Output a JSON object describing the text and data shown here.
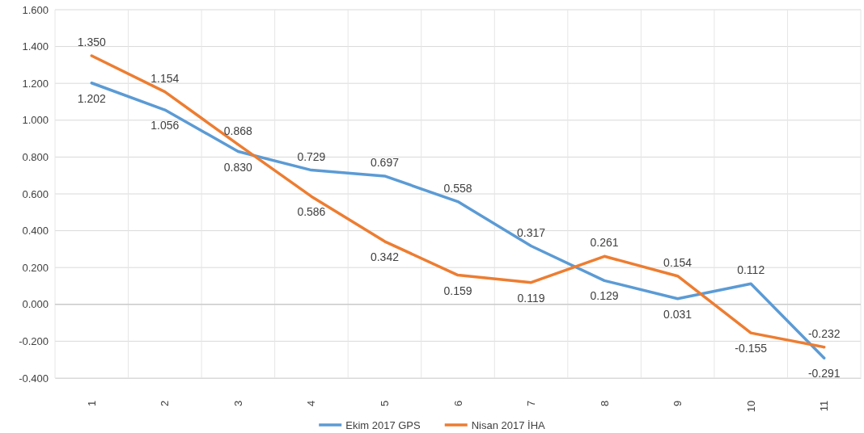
{
  "chart_data": {
    "type": "line",
    "categories": [
      "1",
      "2",
      "3",
      "4",
      "5",
      "6",
      "7",
      "8",
      "9",
      "10",
      "11"
    ],
    "series": [
      {
        "name": "Ekim 2017 GPS",
        "color": "#5b9bd5",
        "values": [
          1.202,
          1.056,
          0.83,
          0.729,
          0.697,
          0.558,
          0.317,
          0.129,
          0.031,
          0.112,
          -0.291
        ],
        "value_labels": [
          "1.202",
          "1.056",
          "0.830",
          "0.729",
          "0.697",
          "0.558",
          "0.317",
          "0.129",
          "0.031",
          "0.112",
          "-0.291"
        ]
      },
      {
        "name": "Nisan 2017 İHA",
        "color": "#ed7d31",
        "values": [
          1.35,
          1.154,
          0.868,
          0.586,
          0.342,
          0.159,
          0.119,
          0.261,
          0.154,
          -0.155,
          -0.232
        ],
        "value_labels": [
          "1.350",
          "1.154",
          "0.868",
          "0.586",
          "0.342",
          "0.159",
          "0.119",
          "0.261",
          "0.154",
          "-0.155",
          "-0.232"
        ]
      }
    ],
    "ylim": [
      -0.4,
      1.6
    ],
    "yticks": [
      {
        "value": -0.4,
        "label": "-0.400"
      },
      {
        "value": -0.2,
        "label": "-0.200"
      },
      {
        "value": 0,
        "label": "0.000"
      },
      {
        "value": 0.2,
        "label": "0.200"
      },
      {
        "value": 0.4,
        "label": "0.400"
      },
      {
        "value": 0.6,
        "label": "0.600"
      },
      {
        "value": 0.8,
        "label": "0.800"
      },
      {
        "value": 1,
        "label": "1.000"
      },
      {
        "value": 1.2,
        "label": "1.200"
      },
      {
        "value": 1.4,
        "label": "1.400"
      },
      {
        "value": 1.6,
        "label": "1.600"
      }
    ],
    "grid": true,
    "legend": "bottom",
    "marker": "none",
    "line_style": "solid"
  }
}
